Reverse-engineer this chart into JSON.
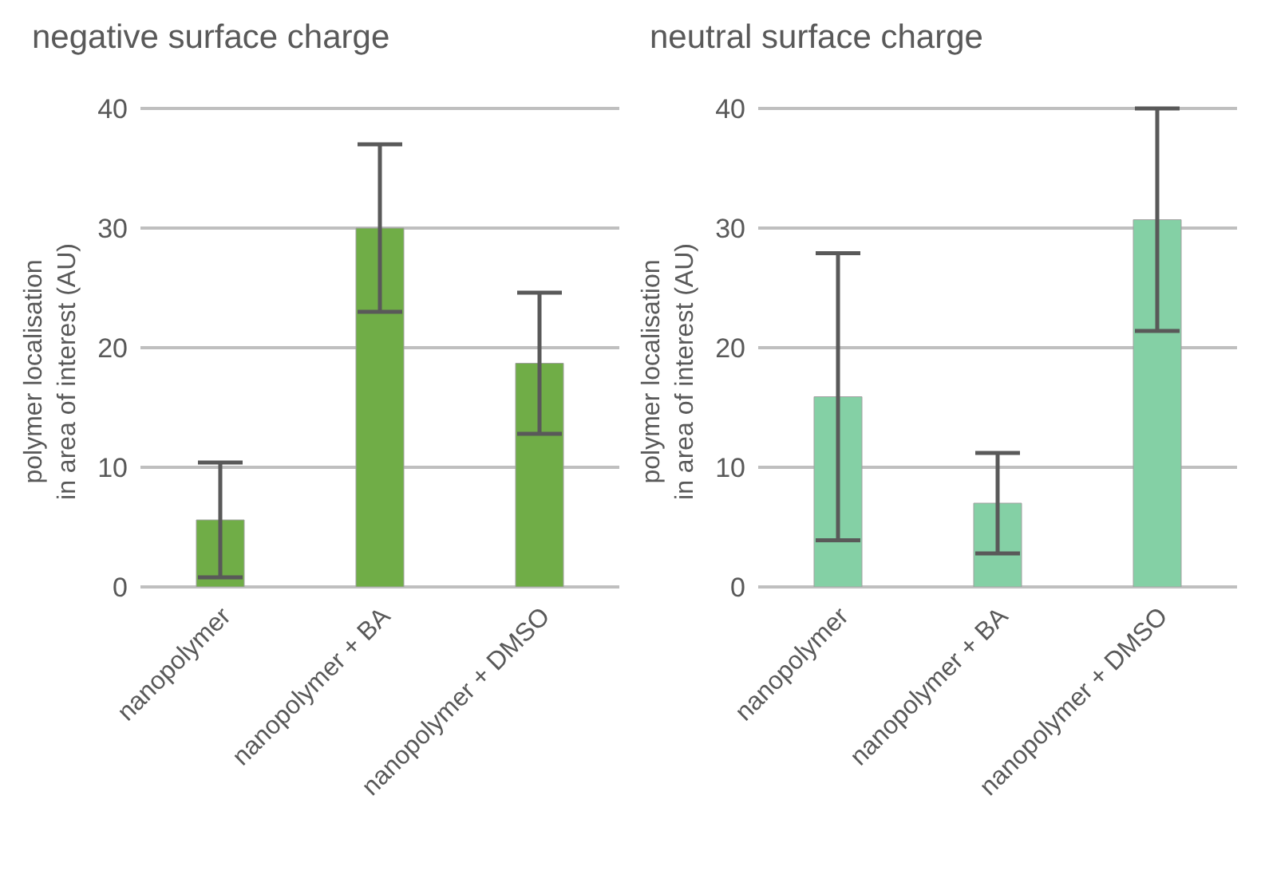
{
  "chart_data": [
    {
      "type": "bar",
      "title": "negative surface charge",
      "ylabel": "polymer localisation\nin area of interest (AU)",
      "categories": [
        "nanopolymer",
        "nanopolymer + BA",
        "nanopolymer + DMSO"
      ],
      "values": [
        5.6,
        30,
        18.7
      ],
      "errors": [
        4.8,
        7,
        5.9
      ],
      "color": "#70ad47",
      "ylim": [
        0,
        40
      ],
      "yticks": [
        0,
        10,
        20,
        30,
        40
      ],
      "grid": "y",
      "legend": false
    },
    {
      "type": "bar",
      "title": "neutral surface charge",
      "ylabel": "polymer localisation\nin area of interest (AU)",
      "categories": [
        "nanopolymer",
        "nanopolymer + BA",
        "nanopolymer + DMSO"
      ],
      "values": [
        15.9,
        7,
        30.7
      ],
      "errors": [
        12,
        4.2,
        9.3
      ],
      "color": "#84d0a5",
      "ylim": [
        0,
        40
      ],
      "yticks": [
        0,
        10,
        20,
        30,
        40
      ],
      "grid": "y",
      "legend": false
    }
  ]
}
